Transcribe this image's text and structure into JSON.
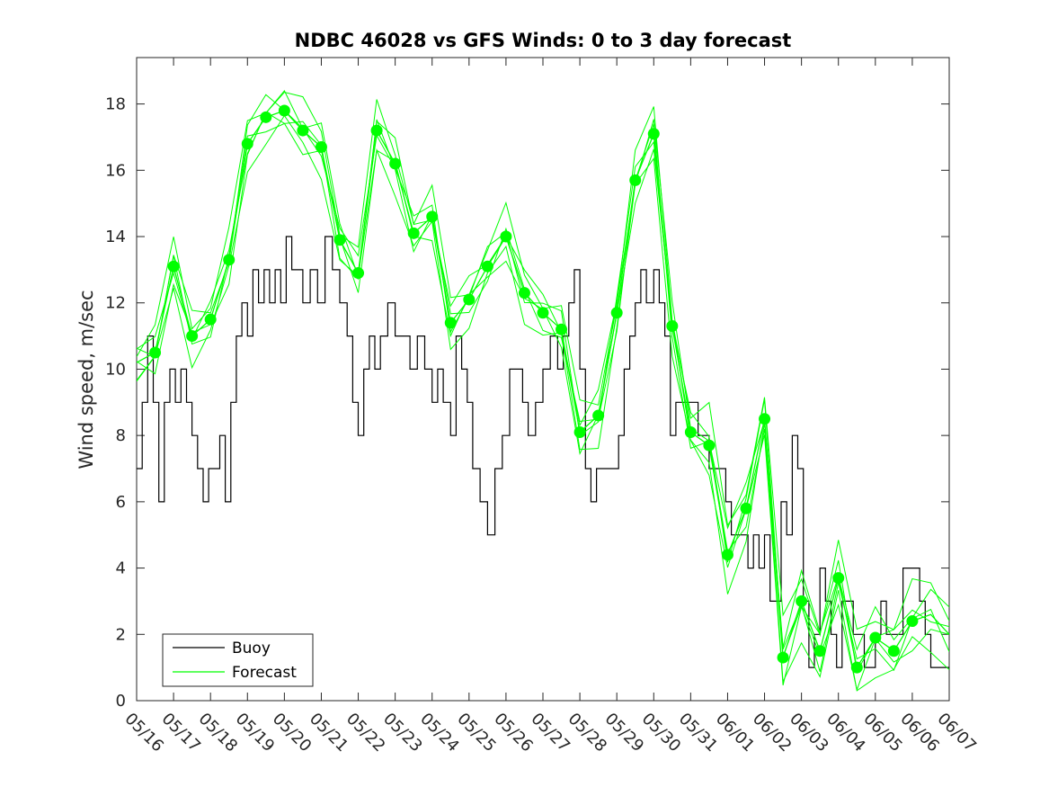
{
  "chart_data": {
    "type": "line",
    "title": "NDBC 46028 vs GFS Winds: 0 to 3 day forecast",
    "xlabel": "",
    "ylabel": "Wind speed, m/sec",
    "x_ticks": [
      "05/16",
      "05/17",
      "05/18",
      "05/19",
      "05/20",
      "05/21",
      "05/22",
      "05/23",
      "05/24",
      "05/25",
      "05/26",
      "05/27",
      "05/28",
      "05/29",
      "05/30",
      "05/31",
      "06/01",
      "06/02",
      "06/03",
      "06/04",
      "06/05",
      "06/06",
      "06/07"
    ],
    "xlim_days": [
      0,
      22
    ],
    "ylim": [
      0,
      19.4
    ],
    "y_ticks": [
      0,
      2,
      4,
      6,
      8,
      10,
      12,
      14,
      16,
      18
    ],
    "grid": false,
    "legend": {
      "position": "bottom-left",
      "entries": [
        "Buoy",
        "Forecast"
      ]
    },
    "series": [
      {
        "name": "Buoy",
        "color": "#000000",
        "x_days": [
          0,
          0.15,
          0.3,
          0.45,
          0.6,
          0.75,
          0.9,
          1.05,
          1.2,
          1.35,
          1.5,
          1.65,
          1.8,
          1.95,
          2.1,
          2.25,
          2.4,
          2.55,
          2.7,
          2.85,
          3.0,
          3.15,
          3.3,
          3.45,
          3.6,
          3.75,
          3.9,
          4.05,
          4.2,
          4.35,
          4.5,
          4.7,
          4.9,
          5.1,
          5.3,
          5.5,
          5.7,
          5.85,
          6.0,
          6.15,
          6.3,
          6.45,
          6.6,
          6.8,
          7.0,
          7.2,
          7.4,
          7.6,
          7.8,
          8.0,
          8.15,
          8.3,
          8.5,
          8.65,
          8.8,
          8.95,
          9.1,
          9.3,
          9.5,
          9.7,
          9.9,
          10.1,
          10.3,
          10.45,
          10.6,
          10.8,
          11.0,
          11.2,
          11.4,
          11.55,
          11.7,
          11.85,
          12.0,
          12.15,
          12.3,
          12.45,
          12.6,
          12.75,
          12.9,
          13.05,
          13.2,
          13.35,
          13.5,
          13.65,
          13.8,
          14.0,
          14.15,
          14.3,
          14.45,
          14.6,
          14.75,
          14.9,
          15.05,
          15.2,
          15.35,
          15.5,
          15.65,
          15.8,
          15.95,
          16.1,
          16.25,
          16.4,
          16.55,
          16.7,
          16.85,
          17.0,
          17.15,
          17.3,
          17.45,
          17.6,
          17.75,
          17.9,
          18.05,
          18.2,
          18.35,
          18.5,
          18.65,
          18.8,
          18.95,
          19.1,
          19.25,
          19.4,
          19.55,
          19.7,
          19.85,
          20.0,
          20.15,
          20.3,
          20.45,
          20.6,
          20.75,
          20.9,
          21.05,
          21.2,
          21.35,
          21.5,
          21.65,
          21.8,
          22.0
        ],
        "values": [
          7,
          9,
          11,
          9,
          6,
          9,
          10,
          9,
          10,
          9,
          8,
          7,
          6,
          7,
          7,
          8,
          6,
          9,
          11,
          12,
          11,
          13,
          12,
          13,
          12,
          13,
          12,
          14,
          13,
          13,
          12,
          13,
          12,
          14,
          13,
          12,
          11,
          9,
          8,
          10,
          11,
          10,
          11,
          12,
          11,
          11,
          10,
          11,
          10,
          9,
          10,
          9,
          8,
          11,
          10,
          9,
          7,
          6,
          5,
          7,
          8,
          10,
          10,
          9,
          8,
          9,
          10,
          11,
          10,
          11,
          12,
          13,
          10,
          7,
          6,
          7,
          7,
          7,
          7,
          8,
          10,
          11,
          12,
          13,
          12,
          13,
          12,
          11,
          8,
          9,
          9,
          9,
          9,
          8,
          8,
          7,
          7,
          7,
          6,
          5,
          5,
          5,
          4,
          5,
          4,
          5,
          3,
          3,
          6,
          5,
          8,
          7,
          3,
          1,
          2,
          4,
          3,
          2,
          1,
          3,
          3,
          2,
          2,
          1,
          1,
          2,
          3,
          2,
          2,
          2,
          4,
          4,
          4,
          3,
          2,
          1,
          1,
          1,
          1
        ]
      },
      {
        "name": "Forecast",
        "color": "#00ff00",
        "x_days": [
          0.0,
          0.5,
          1.0,
          1.5,
          2.0,
          2.5,
          3.0,
          3.5,
          4.0,
          4.5,
          5.0,
          5.5,
          6.0,
          6.5,
          7.0,
          7.5,
          8.0,
          8.5,
          9.0,
          9.5,
          10.0,
          10.5,
          11.0,
          11.5,
          12.0,
          12.5,
          13.0,
          13.5,
          14.0,
          14.5,
          15.0,
          15.5,
          16.0,
          16.5,
          17.0,
          17.5,
          18.0,
          18.5,
          19.0,
          19.5,
          20.0,
          20.5,
          21.0,
          21.5,
          22.0
        ],
        "values": [
          10.2,
          10.5,
          13.1,
          11.0,
          11.5,
          13.3,
          16.8,
          17.6,
          17.8,
          17.2,
          16.7,
          13.9,
          12.9,
          17.2,
          16.2,
          14.1,
          14.6,
          11.4,
          12.1,
          13.1,
          14.0,
          12.3,
          11.7,
          11.2,
          8.1,
          8.6,
          11.7,
          15.7,
          17.1,
          11.3,
          8.1,
          7.7,
          4.4,
          5.8,
          8.5,
          1.3,
          3.0,
          1.5,
          3.7,
          1.0,
          1.9,
          1.5,
          2.4,
          2.6,
          2.0
        ],
        "markers_x_days": [
          0.5,
          1.0,
          1.5,
          2.0,
          2.5,
          3.0,
          3.5,
          4.0,
          4.5,
          5.0,
          5.5,
          6.0,
          6.5,
          7.0,
          7.5,
          8.0,
          8.5,
          9.0,
          9.5,
          10.0,
          10.5,
          11.0,
          11.5,
          12.0,
          12.5,
          13.0,
          13.5,
          14.0,
          14.5,
          15.0,
          15.5,
          16.0,
          16.5,
          17.0,
          17.5,
          18.0,
          18.5,
          19.0,
          19.5,
          20.0,
          20.5,
          21.0
        ],
        "markers_values": [
          10.5,
          13.1,
          11.0,
          11.5,
          13.3,
          16.8,
          17.6,
          17.8,
          17.2,
          16.7,
          13.9,
          12.9,
          17.2,
          16.2,
          14.1,
          14.6,
          11.4,
          12.1,
          13.1,
          14.0,
          12.3,
          11.7,
          11.2,
          8.1,
          8.6,
          11.7,
          15.7,
          17.1,
          11.3,
          8.1,
          7.7,
          4.4,
          5.8,
          8.5,
          1.3,
          3.0,
          1.5,
          3.7,
          1.0,
          1.9,
          1.5,
          2.4
        ]
      }
    ]
  }
}
